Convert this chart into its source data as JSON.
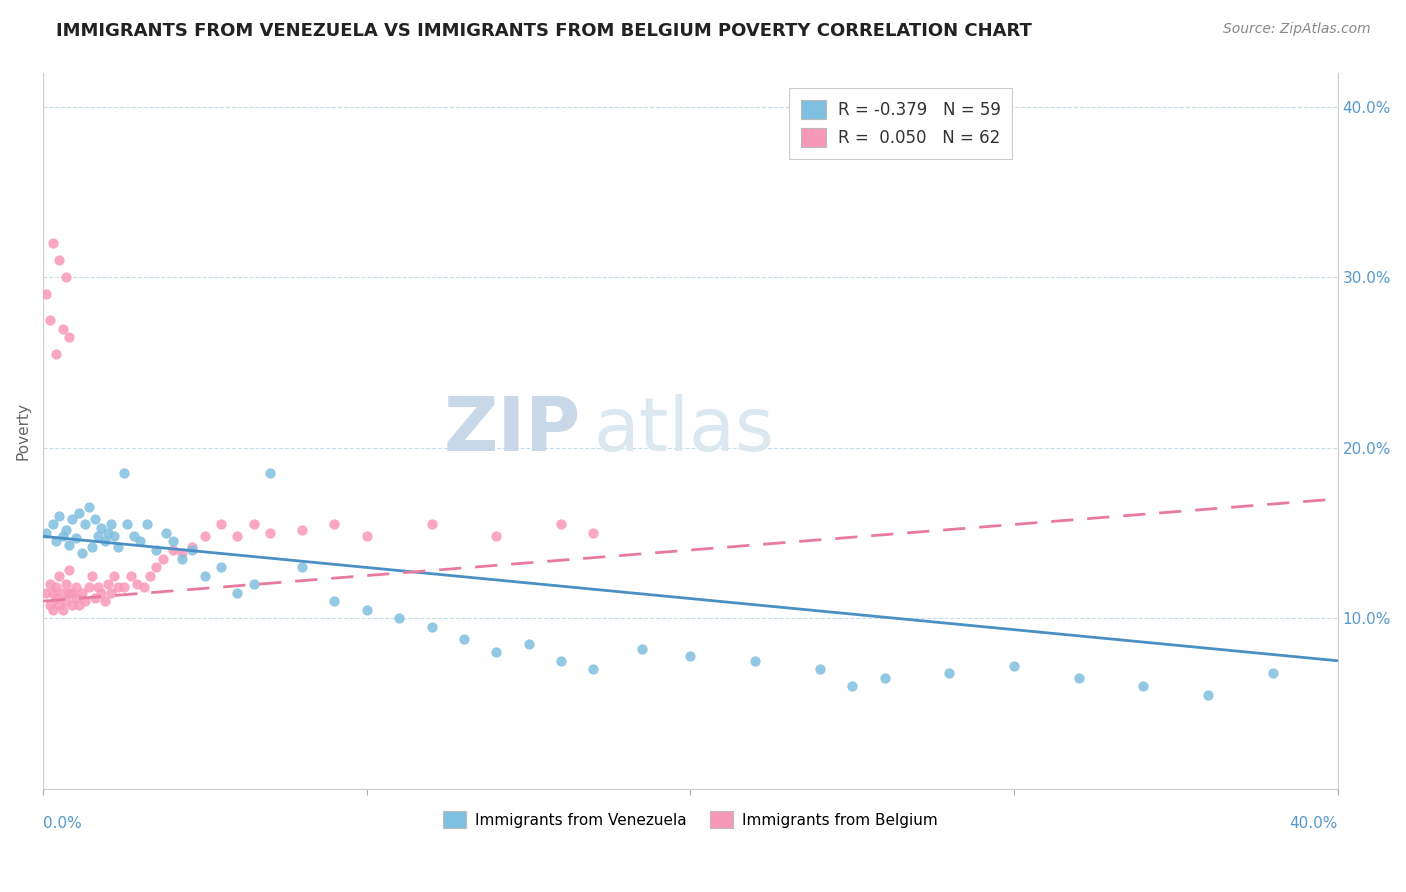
{
  "title": "IMMIGRANTS FROM VENEZUELA VS IMMIGRANTS FROM BELGIUM POVERTY CORRELATION CHART",
  "source": "Source: ZipAtlas.com",
  "ylabel": "Poverty",
  "xlim": [
    0,
    0.4
  ],
  "ylim": [
    0,
    0.42
  ],
  "legend_entry1": "R = -0.379   N = 59",
  "legend_entry2": "R =  0.050   N = 62",
  "color_venezuela": "#7fbfdf",
  "color_belgium": "#f898b8",
  "color_trend_venezuela": "#4a90c4",
  "color_trend_belgium": "#e87aa0",
  "watermark_text": "ZIPatlas",
  "trend_ven_start": 0.148,
  "trend_ven_end": 0.075,
  "trend_bel_start": 0.11,
  "trend_bel_end": 0.17,
  "venezuela_x": [
    0.001,
    0.003,
    0.004,
    0.005,
    0.006,
    0.007,
    0.008,
    0.009,
    0.01,
    0.011,
    0.012,
    0.013,
    0.014,
    0.015,
    0.016,
    0.017,
    0.018,
    0.019,
    0.02,
    0.021,
    0.022,
    0.023,
    0.025,
    0.026,
    0.028,
    0.03,
    0.032,
    0.035,
    0.038,
    0.04,
    0.043,
    0.046,
    0.05,
    0.055,
    0.06,
    0.065,
    0.07,
    0.08,
    0.09,
    0.1,
    0.11,
    0.12,
    0.13,
    0.14,
    0.15,
    0.16,
    0.17,
    0.185,
    0.2,
    0.22,
    0.24,
    0.26,
    0.28,
    0.3,
    0.32,
    0.34,
    0.36,
    0.38,
    0.25
  ],
  "venezuela_y": [
    0.15,
    0.155,
    0.145,
    0.16,
    0.148,
    0.152,
    0.143,
    0.158,
    0.147,
    0.162,
    0.138,
    0.155,
    0.165,
    0.142,
    0.158,
    0.148,
    0.153,
    0.145,
    0.15,
    0.155,
    0.148,
    0.142,
    0.185,
    0.155,
    0.148,
    0.145,
    0.155,
    0.14,
    0.15,
    0.145,
    0.135,
    0.14,
    0.125,
    0.13,
    0.115,
    0.12,
    0.185,
    0.13,
    0.11,
    0.105,
    0.1,
    0.095,
    0.088,
    0.08,
    0.085,
    0.075,
    0.07,
    0.082,
    0.078,
    0.075,
    0.07,
    0.065,
    0.068,
    0.072,
    0.065,
    0.06,
    0.055,
    0.068,
    0.06
  ],
  "belgium_x": [
    0.001,
    0.002,
    0.002,
    0.003,
    0.003,
    0.004,
    0.004,
    0.005,
    0.005,
    0.006,
    0.006,
    0.007,
    0.007,
    0.008,
    0.008,
    0.009,
    0.009,
    0.01,
    0.01,
    0.011,
    0.012,
    0.013,
    0.014,
    0.015,
    0.016,
    0.017,
    0.018,
    0.019,
    0.02,
    0.021,
    0.022,
    0.023,
    0.025,
    0.027,
    0.029,
    0.031,
    0.033,
    0.035,
    0.037,
    0.04,
    0.043,
    0.046,
    0.05,
    0.055,
    0.06,
    0.065,
    0.07,
    0.08,
    0.09,
    0.1,
    0.12,
    0.14,
    0.16,
    0.17,
    0.001,
    0.002,
    0.003,
    0.004,
    0.005,
    0.006,
    0.007,
    0.008
  ],
  "belgium_y": [
    0.115,
    0.12,
    0.108,
    0.115,
    0.105,
    0.118,
    0.112,
    0.125,
    0.108,
    0.115,
    0.105,
    0.12,
    0.11,
    0.115,
    0.128,
    0.108,
    0.115,
    0.112,
    0.118,
    0.108,
    0.115,
    0.11,
    0.118,
    0.125,
    0.112,
    0.118,
    0.115,
    0.11,
    0.12,
    0.115,
    0.125,
    0.118,
    0.118,
    0.125,
    0.12,
    0.118,
    0.125,
    0.13,
    0.135,
    0.14,
    0.138,
    0.142,
    0.148,
    0.155,
    0.148,
    0.155,
    0.15,
    0.152,
    0.155,
    0.148,
    0.155,
    0.148,
    0.155,
    0.15,
    0.29,
    0.275,
    0.32,
    0.255,
    0.31,
    0.27,
    0.3,
    0.265
  ]
}
